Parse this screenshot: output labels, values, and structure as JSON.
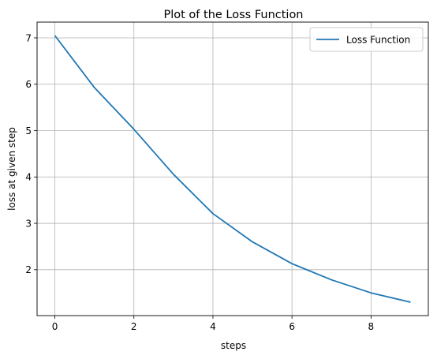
{
  "chart_data": {
    "type": "line",
    "title": "Plot of the Loss Function",
    "xlabel": "steps",
    "ylabel": "loss at given step",
    "xlim": [
      -0.45,
      9.45
    ],
    "ylim": [
      1.01,
      7.34
    ],
    "xticks": [
      0,
      2,
      4,
      6,
      8
    ],
    "yticks": [
      2,
      3,
      4,
      5,
      6,
      7
    ],
    "grid": true,
    "legend_position": "top-right",
    "series": [
      {
        "name": "Loss Function",
        "color": "#1f77b4",
        "x": [
          0,
          1,
          2,
          3,
          4,
          5,
          6,
          7,
          8,
          9
        ],
        "y": [
          7.05,
          5.93,
          5.03,
          4.06,
          3.21,
          2.6,
          2.13,
          1.78,
          1.5,
          1.3
        ]
      }
    ]
  }
}
